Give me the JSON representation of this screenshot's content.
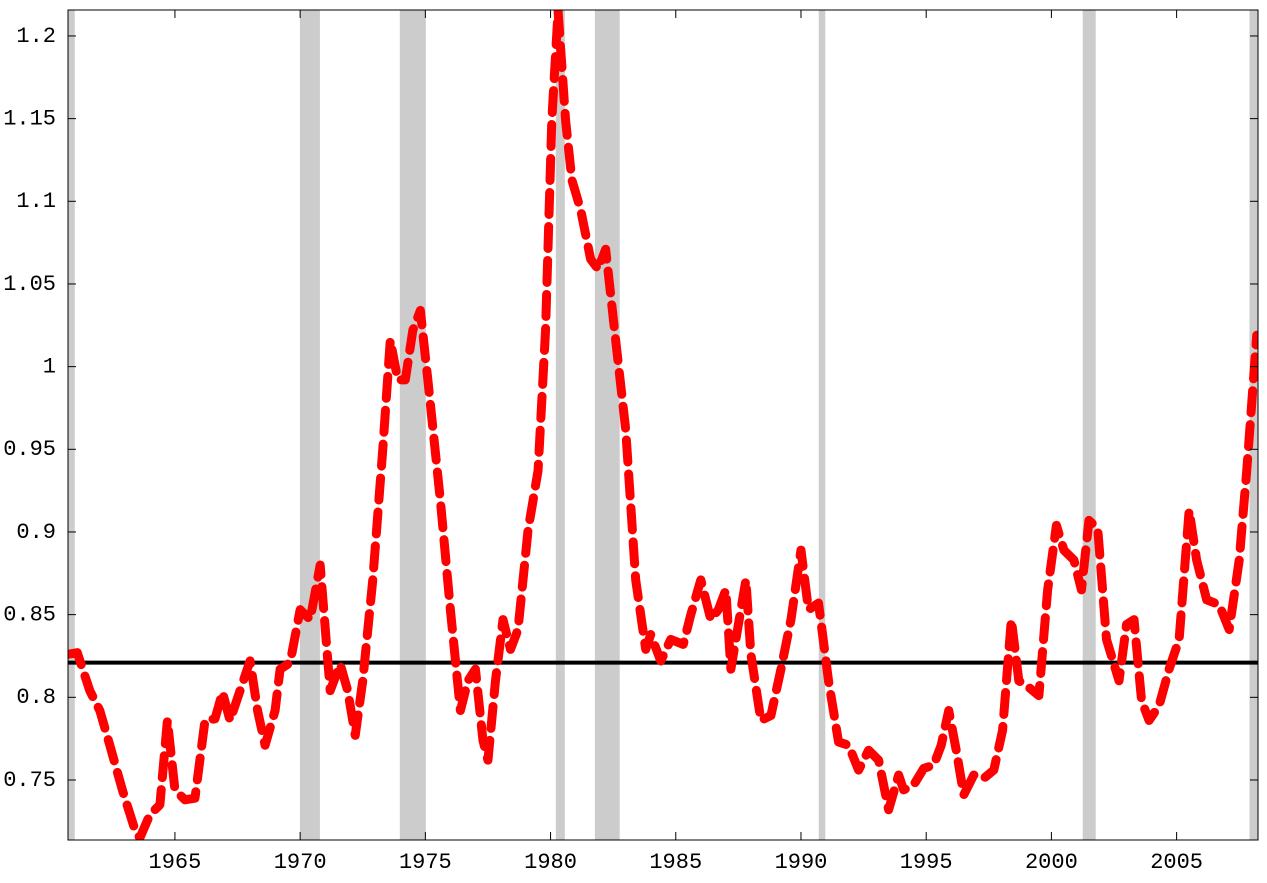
{
  "chart_data": {
    "type": "line",
    "x": [
      1960.73,
      1961.1,
      1961.6,
      1962.0,
      1962.4,
      1962.9,
      1963.4,
      1963.6,
      1964.0,
      1964.4,
      1964.7,
      1965.0,
      1965.4,
      1965.8,
      1966.2,
      1966.6,
      1966.9,
      1967.2,
      1967.6,
      1968.0,
      1968.3,
      1968.6,
      1969.0,
      1969.2,
      1969.6,
      1970.0,
      1970.4,
      1970.8,
      1971.2,
      1971.6,
      1971.9,
      1972.2,
      1972.5,
      1972.9,
      1973.3,
      1973.6,
      1973.9,
      1974.2,
      1974.5,
      1974.8,
      1975.1,
      1975.6,
      1976.0,
      1976.4,
      1976.7,
      1977.0,
      1977.3,
      1977.5,
      1977.8,
      1978.1,
      1978.4,
      1978.7,
      1979.1,
      1979.5,
      1979.8,
      1980.05,
      1980.3,
      1980.6,
      1980.85,
      1981.2,
      1981.6,
      1981.9,
      1982.2,
      1982.6,
      1983.0,
      1983.4,
      1983.8,
      1984.0,
      1984.4,
      1984.8,
      1985.3,
      1985.6,
      1986.0,
      1986.4,
      1986.7,
      1987.0,
      1987.2,
      1987.6,
      1987.8,
      1988.0,
      1988.4,
      1988.8,
      1989.2,
      1989.6,
      1990.0,
      1990.3,
      1990.7,
      1991.1,
      1991.5,
      1991.9,
      1992.3,
      1992.7,
      1993.1,
      1993.5,
      1993.9,
      1994.1,
      1994.5,
      1994.9,
      1995.3,
      1995.6,
      1995.9,
      1996.2,
      1996.5,
      1996.9,
      1997.3,
      1997.7,
      1998.05,
      1998.4,
      1998.7,
      1999.1,
      1999.5,
      1999.85,
      2000.2,
      2000.5,
      2000.9,
      2001.2,
      2001.5,
      2001.85,
      2002.2,
      2002.5,
      2002.7,
      2003.0,
      2003.3,
      2003.6,
      2003.9,
      2004.3,
      2004.7,
      2005.1,
      2005.5,
      2005.8,
      2006.2,
      2006.7,
      2007.1,
      2007.5,
      2007.8,
      2008.2
    ],
    "values": [
      0.826,
      0.827,
      0.804,
      0.792,
      0.771,
      0.744,
      0.72,
      0.715,
      0.729,
      0.735,
      0.786,
      0.744,
      0.738,
      0.739,
      0.786,
      0.787,
      0.803,
      0.786,
      0.804,
      0.822,
      0.792,
      0.771,
      0.792,
      0.817,
      0.821,
      0.853,
      0.847,
      0.88,
      0.804,
      0.82,
      0.804,
      0.777,
      0.81,
      0.871,
      0.95,
      1.016,
      0.992,
      0.992,
      1.022,
      1.034,
      0.992,
      0.919,
      0.853,
      0.792,
      0.81,
      0.817,
      0.774,
      0.762,
      0.81,
      0.847,
      0.829,
      0.841,
      0.901,
      0.937,
      1.022,
      1.149,
      1.215,
      1.149,
      1.113,
      1.095,
      1.065,
      1.059,
      1.071,
      1.016,
      0.962,
      0.871,
      0.829,
      0.838,
      0.822,
      0.835,
      0.832,
      0.85,
      0.871,
      0.847,
      0.853,
      0.865,
      0.817,
      0.853,
      0.871,
      0.826,
      0.786,
      0.789,
      0.817,
      0.847,
      0.889,
      0.853,
      0.857,
      0.81,
      0.773,
      0.771,
      0.756,
      0.768,
      0.762,
      0.732,
      0.753,
      0.744,
      0.747,
      0.757,
      0.759,
      0.771,
      0.792,
      0.768,
      0.741,
      0.753,
      0.751,
      0.756,
      0.78,
      0.847,
      0.81,
      0.806,
      0.801,
      0.865,
      0.904,
      0.889,
      0.883,
      0.865,
      0.907,
      0.902,
      0.835,
      0.82,
      0.81,
      0.844,
      0.847,
      0.798,
      0.786,
      0.795,
      0.817,
      0.835,
      0.913,
      0.883,
      0.859,
      0.856,
      0.841,
      0.883,
      0.937,
      1.019
    ],
    "color": "#ff0000",
    "line_style": "dashed",
    "hline": 0.821,
    "hline_color": "#000000",
    "shaded_regions": [
      [
        1960.73,
        1961.0
      ],
      [
        1969.99,
        1970.79
      ],
      [
        1973.98,
        1975.02
      ],
      [
        1980.21,
        1980.57
      ],
      [
        1981.77,
        1982.76
      ],
      [
        1990.71,
        1990.97
      ],
      [
        2001.25,
        2001.77
      ],
      [
        2007.91,
        2008.25
      ]
    ],
    "shade_color": "#cccccc",
    "xlim": [
      1960.73,
      2008.25
    ],
    "ylim": [
      0.7137,
      1.2157
    ],
    "xticks": [
      1965,
      1970,
      1975,
      1980,
      1985,
      1990,
      1995,
      2000,
      2005
    ],
    "yticks": [
      0.75,
      0.8,
      0.85,
      0.9,
      0.95,
      1,
      1.05,
      1.1,
      1.15,
      1.2
    ]
  }
}
